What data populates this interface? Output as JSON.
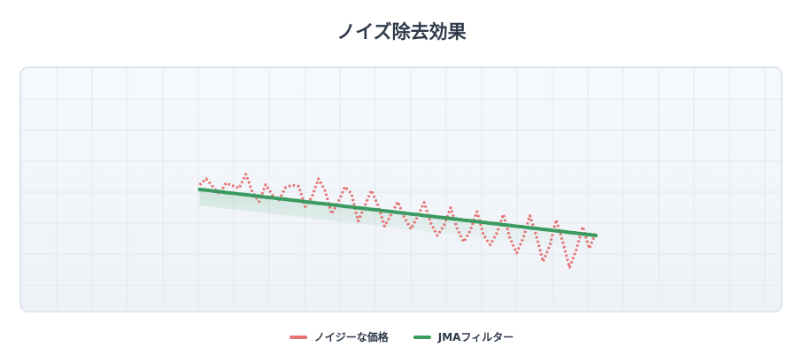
{
  "chart_data": {
    "type": "line",
    "title": "ノイズ除去効果",
    "xlabel": "",
    "ylabel": "",
    "grid": true,
    "legend_position": "bottom",
    "x": [
      0,
      1,
      2,
      3,
      4,
      5,
      6,
      7,
      8,
      9,
      10,
      11,
      12,
      13,
      14,
      15,
      16,
      17,
      18,
      19,
      20,
      21,
      22,
      23,
      24,
      25,
      26,
      27,
      28,
      29,
      30,
      31,
      32,
      33,
      34,
      35,
      36,
      37,
      38,
      39,
      40,
      41,
      42,
      43,
      44,
      45,
      46,
      47,
      48,
      49,
      50,
      51,
      52,
      53,
      54,
      55,
      56,
      57,
      58,
      59,
      60
    ],
    "xlim": [
      -27,
      88
    ],
    "ylim": [
      -39.5,
      39.5
    ],
    "series": [
      {
        "name": "ノイジーな価格",
        "color": "#e57373",
        "style": "dotted",
        "values": [
          1.5,
          3.5,
          0.9,
          -1.5,
          2.1,
          1.2,
          0.4,
          5.0,
          -0.9,
          -4.0,
          1.6,
          -1.8,
          -3.5,
          0.6,
          1.4,
          1.0,
          -5.6,
          -2.5,
          3.5,
          -0.5,
          -8.0,
          -4.1,
          0.9,
          -1.4,
          -10.3,
          -5.4,
          -0.3,
          -5.1,
          -12.0,
          -8.2,
          -4.0,
          -9.1,
          -12.9,
          -8.8,
          -4.2,
          -10.9,
          -15.0,
          -11.7,
          -5.9,
          -12.8,
          -17.1,
          -13.3,
          -7.2,
          -14.9,
          -18.0,
          -14.2,
          -8.1,
          -15.9,
          -20.7,
          -15.8,
          -8.5,
          -15.2,
          -23.5,
          -18.3,
          -9.9,
          -17.3,
          -25.4,
          -19.9,
          -12.1,
          -19.2,
          -14.0
        ]
      },
      {
        "name": "JMAフィルター",
        "color": "#3a9a60",
        "style": "solid",
        "values": [
          0.0,
          -0.2,
          -0.5,
          -0.7,
          -1.0,
          -1.2,
          -1.5,
          -1.7,
          -2.0,
          -2.2,
          -2.5,
          -2.7,
          -3.0,
          -3.2,
          -3.5,
          -3.7,
          -4.0,
          -4.2,
          -4.5,
          -4.7,
          -5.0,
          -5.2,
          -5.5,
          -5.7,
          -6.0,
          -6.2,
          -6.5,
          -6.7,
          -7.0,
          -7.2,
          -7.5,
          -7.7,
          -8.0,
          -8.2,
          -8.5,
          -8.7,
          -9.0,
          -9.2,
          -9.5,
          -9.7,
          -10.0,
          -10.2,
          -10.5,
          -10.7,
          -11.0,
          -11.2,
          -11.5,
          -11.7,
          -12.0,
          -12.2,
          -12.5,
          -12.7,
          -13.0,
          -13.2,
          -13.5,
          -13.7,
          -14.0,
          -14.2,
          -14.5,
          -14.7,
          -15.0
        ]
      }
    ]
  }
}
